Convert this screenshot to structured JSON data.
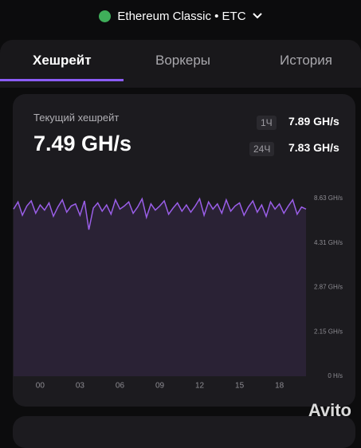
{
  "header": {
    "coin": "Ethereum Classic • ETC"
  },
  "tabs": [
    "Хешрейт",
    "Воркеры",
    "История"
  ],
  "card": {
    "label": "Текущий хешрейт",
    "current": "7.49 GH/s",
    "stats": [
      {
        "period": "1Ч",
        "value": "7.89 GH/s"
      },
      {
        "period": "24Ч",
        "value": "7.83 GH/s"
      }
    ]
  },
  "chart_data": {
    "type": "area",
    "color": "#9a5ee8",
    "fill": "#2a2235",
    "categories": [
      null,
      null,
      null,
      null,
      null,
      null,
      "00",
      null,
      null,
      null,
      null,
      null,
      null,
      null,
      null,
      "03",
      null,
      null,
      null,
      null,
      null,
      null,
      null,
      null,
      "06",
      null,
      null,
      null,
      null,
      null,
      null,
      null,
      null,
      "09",
      null,
      null,
      null,
      null,
      null,
      null,
      null,
      null,
      "12",
      null,
      null,
      null,
      null,
      null,
      null,
      null,
      null,
      "15",
      null,
      null,
      null,
      null,
      null,
      null,
      null,
      null,
      "18",
      null,
      null,
      null,
      null,
      null,
      null
    ],
    "values": [
      7.6,
      8.3,
      7.0,
      7.9,
      8.4,
      7.2,
      8.0,
      7.5,
      8.2,
      6.9,
      7.8,
      8.5,
      7.3,
      7.9,
      8.1,
      7.0,
      8.4,
      5.6,
      7.7,
      8.2,
      7.4,
      8.0,
      7.1,
      8.5,
      7.6,
      7.9,
      8.3,
      7.2,
      7.8,
      8.6,
      6.8,
      8.1,
      7.5,
      7.9,
      8.4,
      7.1,
      7.7,
      8.2,
      7.4,
      8.0,
      7.3,
      7.9,
      8.6,
      7.0,
      8.3,
      7.6,
      8.1,
      7.2,
      8.5,
      7.4,
      7.9,
      8.2,
      7.0,
      7.8,
      8.4,
      7.3,
      8.0,
      6.9,
      8.3,
      7.6,
      8.1,
      7.2,
      7.9,
      8.5,
      7.1,
      7.8,
      7.6
    ],
    "ylim": [
      0,
      8.63
    ],
    "yticks": [
      {
        "value": 0,
        "label": "0 H/s"
      },
      {
        "value": 2.15,
        "label": "2.15 GH/s"
      },
      {
        "value": 2.87,
        "label": "2.87 GH/s"
      },
      {
        "value": 4.31,
        "label": "4.31 GH/s"
      },
      {
        "value": 8.63,
        "label": "8.63 GH/s"
      }
    ],
    "grid": false
  },
  "watermark": "Avito"
}
